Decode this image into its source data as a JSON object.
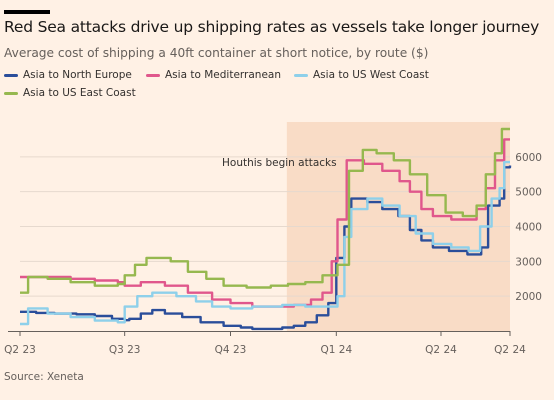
{
  "header": {
    "title": "Red Sea attacks drive up shipping rates as vessels take longer journey",
    "subtitle": "Average cost of shipping a 40ft container at short notice, by route ($)"
  },
  "footer": {
    "source": "Source: Xeneta"
  },
  "chart_data": {
    "type": "line",
    "step": true,
    "x_axis": {
      "range": [
        "2023-04-01",
        "2024-05-31"
      ],
      "ticks": [
        {
          "label": "Q2 23",
          "date": "2023-04-01"
        },
        {
          "label": "Q3 23",
          "date": "2023-07-01"
        },
        {
          "label": "Q4 23",
          "date": "2023-10-01"
        },
        {
          "label": "Q1 24",
          "date": "2024-01-01"
        },
        {
          "label": "Q2 24",
          "date": "2024-04-01"
        },
        {
          "label": "Q2 24",
          "date": "2024-05-31"
        }
      ]
    },
    "y_axis": {
      "range": [
        1000,
        7000
      ],
      "ticks": [
        2000,
        3000,
        4000,
        5000,
        6000
      ],
      "position": "right"
    },
    "gridlines": true,
    "legend": "top",
    "annotation": {
      "label": "Houthis begin attacks",
      "from": "2023-11-19",
      "to": "2024-05-31",
      "color": "#f9dcc6"
    },
    "series": [
      {
        "name": "Asia to North Europe",
        "color": "#2b4e9a",
        "points": [
          [
            "2023-04-01",
            1550
          ],
          [
            "2023-04-15",
            1520
          ],
          [
            "2023-05-01",
            1500
          ],
          [
            "2023-05-20",
            1480
          ],
          [
            "2023-06-05",
            1430
          ],
          [
            "2023-06-20",
            1350
          ],
          [
            "2023-07-01",
            1310
          ],
          [
            "2023-07-05",
            1350
          ],
          [
            "2023-07-15",
            1500
          ],
          [
            "2023-07-25",
            1600
          ],
          [
            "2023-08-05",
            1500
          ],
          [
            "2023-08-20",
            1400
          ],
          [
            "2023-09-05",
            1250
          ],
          [
            "2023-09-25",
            1150
          ],
          [
            "2023-10-10",
            1100
          ],
          [
            "2023-10-20",
            1060
          ],
          [
            "2023-11-15",
            1100
          ],
          [
            "2023-11-25",
            1150
          ],
          [
            "2023-12-05",
            1250
          ],
          [
            "2023-12-15",
            1450
          ],
          [
            "2023-12-25",
            1800
          ],
          [
            "2024-01-01",
            3100
          ],
          [
            "2024-01-08",
            4000
          ],
          [
            "2024-01-14",
            4800
          ],
          [
            "2024-01-28",
            4700
          ],
          [
            "2024-02-10",
            4500
          ],
          [
            "2024-02-24",
            4300
          ],
          [
            "2024-03-05",
            3900
          ],
          [
            "2024-03-15",
            3600
          ],
          [
            "2024-03-25",
            3400
          ],
          [
            "2024-04-08",
            3300
          ],
          [
            "2024-04-24",
            3200
          ],
          [
            "2024-05-06",
            3400
          ],
          [
            "2024-05-12",
            4600
          ],
          [
            "2024-05-22",
            4800
          ],
          [
            "2024-05-26",
            5700
          ],
          [
            "2024-05-31",
            5750
          ]
        ]
      },
      {
        "name": "Asia to Mediterranean",
        "color": "#e0578c",
        "points": [
          [
            "2023-04-01",
            2550
          ],
          [
            "2023-04-25",
            2550
          ],
          [
            "2023-05-15",
            2500
          ],
          [
            "2023-06-05",
            2450
          ],
          [
            "2023-06-25",
            2400
          ],
          [
            "2023-07-01",
            2300
          ],
          [
            "2023-07-15",
            2400
          ],
          [
            "2023-08-05",
            2300
          ],
          [
            "2023-08-25",
            2100
          ],
          [
            "2023-09-15",
            1900
          ],
          [
            "2023-10-01",
            1800
          ],
          [
            "2023-10-20",
            1700
          ],
          [
            "2023-11-10",
            1700
          ],
          [
            "2023-11-25",
            1750
          ],
          [
            "2023-12-10",
            1900
          ],
          [
            "2023-12-20",
            2100
          ],
          [
            "2023-12-28",
            3000
          ],
          [
            "2024-01-02",
            4200
          ],
          [
            "2024-01-10",
            5900
          ],
          [
            "2024-01-25",
            5800
          ],
          [
            "2024-02-10",
            5600
          ],
          [
            "2024-02-25",
            5300
          ],
          [
            "2024-03-05",
            5000
          ],
          [
            "2024-03-15",
            4500
          ],
          [
            "2024-03-25",
            4300
          ],
          [
            "2024-04-10",
            4200
          ],
          [
            "2024-04-24",
            4200
          ],
          [
            "2024-05-02",
            4500
          ],
          [
            "2024-05-10",
            5100
          ],
          [
            "2024-05-18",
            5900
          ],
          [
            "2024-05-26",
            6500
          ],
          [
            "2024-05-31",
            6500
          ]
        ]
      },
      {
        "name": "Asia to US West Coast",
        "color": "#8ed0ea",
        "points": [
          [
            "2023-04-01",
            1200
          ],
          [
            "2023-04-08",
            1650
          ],
          [
            "2023-04-25",
            1500
          ],
          [
            "2023-05-15",
            1400
          ],
          [
            "2023-06-05",
            1300
          ],
          [
            "2023-06-25",
            1250
          ],
          [
            "2023-07-01",
            1700
          ],
          [
            "2023-07-12",
            2000
          ],
          [
            "2023-07-25",
            2100
          ],
          [
            "2023-08-15",
            2000
          ],
          [
            "2023-09-01",
            1850
          ],
          [
            "2023-09-15",
            1700
          ],
          [
            "2023-10-01",
            1650
          ],
          [
            "2023-10-20",
            1700
          ],
          [
            "2023-11-15",
            1750
          ],
          [
            "2023-12-05",
            1700
          ],
          [
            "2023-12-20",
            1700
          ],
          [
            "2024-01-02",
            2000
          ],
          [
            "2024-01-08",
            3700
          ],
          [
            "2024-01-14",
            4500
          ],
          [
            "2024-01-28",
            4800
          ],
          [
            "2024-02-10",
            4600
          ],
          [
            "2024-02-25",
            4300
          ],
          [
            "2024-03-10",
            3800
          ],
          [
            "2024-03-25",
            3500
          ],
          [
            "2024-04-10",
            3400
          ],
          [
            "2024-04-25",
            3300
          ],
          [
            "2024-05-05",
            4000
          ],
          [
            "2024-05-15",
            4800
          ],
          [
            "2024-05-22",
            5100
          ],
          [
            "2024-05-26",
            5850
          ],
          [
            "2024-05-31",
            5850
          ]
        ]
      },
      {
        "name": "Asia to US East Coast",
        "color": "#96b84f",
        "points": [
          [
            "2023-04-01",
            2100
          ],
          [
            "2023-04-08",
            2550
          ],
          [
            "2023-04-25",
            2500
          ],
          [
            "2023-05-15",
            2400
          ],
          [
            "2023-06-05",
            2300
          ],
          [
            "2023-06-25",
            2350
          ],
          [
            "2023-07-01",
            2600
          ],
          [
            "2023-07-10",
            2900
          ],
          [
            "2023-07-20",
            3100
          ],
          [
            "2023-08-10",
            3000
          ],
          [
            "2023-08-25",
            2700
          ],
          [
            "2023-09-10",
            2500
          ],
          [
            "2023-09-25",
            2300
          ],
          [
            "2023-10-15",
            2250
          ],
          [
            "2023-11-05",
            2300
          ],
          [
            "2023-11-20",
            2350
          ],
          [
            "2023-12-05",
            2400
          ],
          [
            "2023-12-20",
            2600
          ],
          [
            "2024-01-02",
            2900
          ],
          [
            "2024-01-12",
            5600
          ],
          [
            "2024-01-24",
            6200
          ],
          [
            "2024-02-05",
            6100
          ],
          [
            "2024-02-20",
            5900
          ],
          [
            "2024-03-05",
            5500
          ],
          [
            "2024-03-20",
            4900
          ],
          [
            "2024-04-05",
            4400
          ],
          [
            "2024-04-20",
            4300
          ],
          [
            "2024-05-02",
            4600
          ],
          [
            "2024-05-10",
            5500
          ],
          [
            "2024-05-18",
            6100
          ],
          [
            "2024-05-24",
            6800
          ],
          [
            "2024-05-31",
            6800
          ]
        ]
      }
    ]
  }
}
